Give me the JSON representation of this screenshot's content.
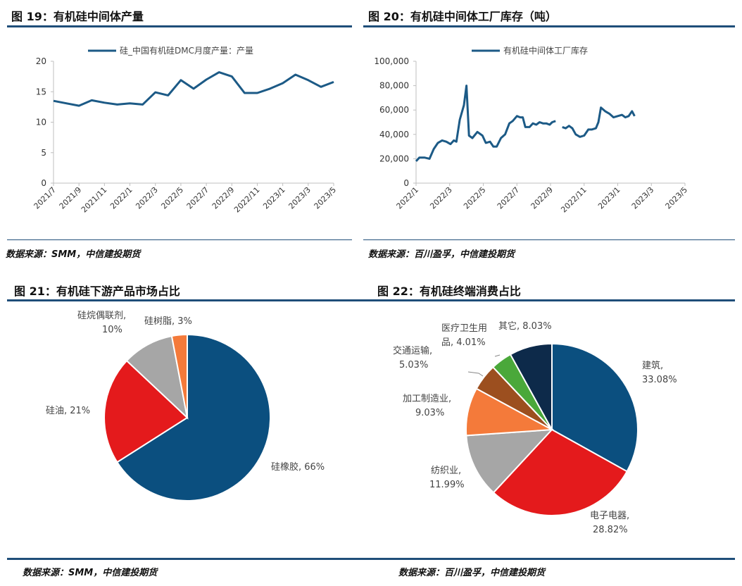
{
  "panels": {
    "p19": {
      "title": "图 19：有机硅中间体产量",
      "source": "数据来源：SMM，中信建投期货"
    },
    "p20": {
      "title": "图 20：有机硅中间体工厂库存（吨）",
      "source": "数据来源：百川盈孚，中信建投期货"
    },
    "p21": {
      "title": "图 21：有机硅下游产品市场占比",
      "source": "数据来源：SMM，中信建投期货"
    },
    "p22": {
      "title": "图 22：有机硅终端消费占比",
      "source": "数据来源：百川盈孚，中信建投期货"
    }
  },
  "colors": {
    "line": "#1c5a86",
    "axis": "#bfbfbf",
    "rule": "#1f4e79"
  },
  "chart_data": [
    {
      "type": "line",
      "series": [
        {
          "name": "硅_中国有机硅DMC月度产量：产量",
          "values": [
            13.5,
            13.1,
            12.7,
            13.6,
            13.2,
            12.9,
            13.1,
            12.9,
            14.9,
            14.4,
            16.9,
            15.5,
            17.0,
            18.2,
            17.5,
            14.8,
            14.8,
            15.5,
            16.4,
            17.8,
            16.9,
            15.8,
            16.6
          ]
        }
      ],
      "x": [
        "2021/7",
        "2021/8",
        "2021/9",
        "2021/10",
        "2021/11",
        "2021/12",
        "2022/1",
        "2022/2",
        "2022/3",
        "2022/4",
        "2022/5",
        "2022/6",
        "2022/7",
        "2022/8",
        "2022/9",
        "2022/10",
        "2022/11",
        "2022/12",
        "2023/1",
        "2023/2",
        "2023/3",
        "2023/4",
        "2023/5"
      ],
      "xticks": [
        "2021/7",
        "2021/9",
        "2021/11",
        "2022/1",
        "2022/3",
        "2022/5",
        "2022/7",
        "2022/9",
        "2022/11",
        "2023/1",
        "2023/3",
        "2023/5"
      ],
      "yticks": [
        "0",
        "5",
        "10",
        "15",
        "20"
      ],
      "ylim": [
        0,
        20
      ]
    },
    {
      "type": "line",
      "series": [
        {
          "name": "有机硅中间体工厂库存",
          "segments": [
            [
              [
                0,
                18000
              ],
              [
                0.2,
                21000
              ],
              [
                0.5,
                21000
              ],
              [
                0.8,
                20000
              ],
              [
                1.05,
                28000
              ],
              [
                1.3,
                33000
              ],
              [
                1.55,
                35000
              ],
              [
                1.8,
                34000
              ],
              [
                2.05,
                32000
              ],
              [
                2.25,
                35000
              ],
              [
                2.4,
                34000
              ],
              [
                2.6,
                52000
              ],
              [
                2.85,
                64000
              ],
              [
                3.0,
                80000
              ],
              [
                3.15,
                39000
              ],
              [
                3.35,
                37000
              ],
              [
                3.65,
                42000
              ],
              [
                3.95,
                39000
              ],
              [
                4.15,
                33000
              ],
              [
                4.4,
                34000
              ],
              [
                4.6,
                30000
              ],
              [
                4.8,
                30000
              ],
              [
                5.05,
                37000
              ],
              [
                5.3,
                40000
              ],
              [
                5.55,
                49000
              ],
              [
                5.75,
                51000
              ],
              [
                6.0,
                55000
              ],
              [
                6.2,
                54000
              ],
              [
                6.35,
                54000
              ],
              [
                6.5,
                46000
              ],
              [
                6.75,
                46000
              ],
              [
                6.95,
                49000
              ],
              [
                7.15,
                48000
              ],
              [
                7.35,
                50000
              ],
              [
                7.55,
                49000
              ],
              [
                7.75,
                49000
              ],
              [
                7.95,
                48000
              ],
              [
                8.1,
                50000
              ],
              [
                8.3,
                51000
              ]
            ],
            [
              [
                8.7,
                46000
              ],
              [
                8.9,
                45000
              ],
              [
                9.1,
                47000
              ],
              [
                9.3,
                45000
              ],
              [
                9.5,
                40000
              ],
              [
                9.75,
                38000
              ],
              [
                10.0,
                39000
              ],
              [
                10.25,
                44000
              ],
              [
                10.45,
                44000
              ],
              [
                10.7,
                45000
              ],
              [
                10.85,
                50000
              ],
              [
                11.0,
                62000
              ],
              [
                11.25,
                59000
              ],
              [
                11.5,
                57000
              ],
              [
                11.75,
                54000
              ],
              [
                12.0,
                55000
              ],
              [
                12.25,
                56000
              ],
              [
                12.45,
                54000
              ],
              [
                12.65,
                55000
              ],
              [
                12.85,
                59000
              ],
              [
                13.0,
                55000
              ]
            ]
          ]
        }
      ],
      "x_unit": "months since 2022/1",
      "xticks": [
        "2022/1",
        "2022/3",
        "2022/5",
        "2022/7",
        "2022/9",
        "2022/11",
        "2023/1",
        "2023/3",
        "2023/5"
      ],
      "yticks": [
        "0",
        "20,000",
        "40,000",
        "60,000",
        "80,000",
        "100,000"
      ],
      "ylim": [
        0,
        100000
      ]
    },
    {
      "type": "pie",
      "slices": [
        {
          "label": "硅橡胶, 66%",
          "value": 66,
          "color": "#0b4f7f"
        },
        {
          "label": "硅油, 21%",
          "value": 21,
          "color": "#e41a1c"
        },
        {
          "label": "硅烷偶联剂,",
          "label2": "10%",
          "value": 10,
          "color": "#a6a6a6"
        },
        {
          "label": "硅树脂, 3%",
          "value": 3,
          "color": "#f47a3a"
        }
      ]
    },
    {
      "type": "pie",
      "slices": [
        {
          "label": "建筑,",
          "label2": "33.08%",
          "value": 33.08,
          "color": "#0b4f7f"
        },
        {
          "label": "电子电器,",
          "label2": "28.82%",
          "value": 28.82,
          "color": "#e41a1c"
        },
        {
          "label": "纺织业,",
          "label2": "11.99%",
          "value": 11.99,
          "color": "#a6a6a6"
        },
        {
          "label": "加工制造业,",
          "label2": "9.03%",
          "value": 9.03,
          "color": "#f47a3a"
        },
        {
          "label": "交通运输,",
          "label2": "5.03%",
          "value": 5.03,
          "color": "#9c4f1f"
        },
        {
          "label": "医疗卫生用",
          "label2": "品, 4.01%",
          "value": 4.01,
          "color": "#4aa83a"
        },
        {
          "label": "其它, 8.03%",
          "value": 8.03,
          "color": "#0d2a4a"
        }
      ]
    }
  ]
}
